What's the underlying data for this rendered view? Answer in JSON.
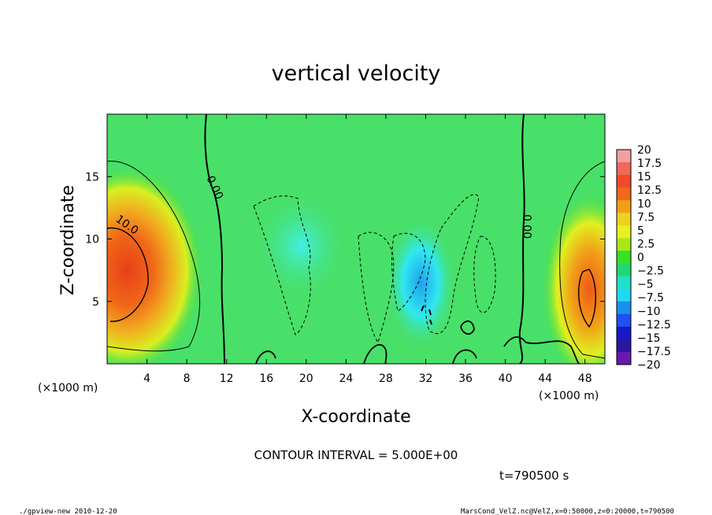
{
  "chart_data": {
    "type": "heatmap",
    "title": "vertical velocity",
    "xlabel": "X-coordinate",
    "ylabel": "Z-coordinate",
    "x_unit": "(×1000 m)",
    "xlim": [
      0,
      50
    ],
    "ylim": [
      0,
      20
    ],
    "x_ticks": [
      4,
      8,
      12,
      16,
      20,
      24,
      28,
      32,
      36,
      40,
      44,
      48
    ],
    "y_ticks": [
      5,
      10,
      15
    ],
    "colorbar": {
      "range": [
        -20,
        20
      ],
      "labels": [
        "20",
        "17.5",
        "15",
        "12.5",
        "10",
        "7.5",
        "5",
        "2.5",
        "0",
        "−2.5",
        "−5",
        "−7.5",
        "−10",
        "−12.5",
        "−15",
        "−17.5",
        "−20"
      ],
      "colors": [
        "#f0a0a0",
        "#f06a5a",
        "#f04a28",
        "#f06818",
        "#f0a018",
        "#f0d020",
        "#e8f020",
        "#a8e818",
        "#38e028",
        "#20d870",
        "#20e0c8",
        "#20d8f0",
        "#1890f0",
        "#2050f0",
        "#1818c8",
        "#2818a0",
        "#6818b0"
      ]
    },
    "contour_labels": [
      {
        "text": "10.0",
        "x": 1.8,
        "z": 10.9
      },
      {
        "text": "0.00",
        "x": 10.5,
        "z": 14.0
      },
      {
        "text": "0.00",
        "x": 41.8,
        "z": 11.0
      }
    ],
    "updrafts": [
      {
        "x": 2.0,
        "z": 7.5,
        "peak": 15
      },
      {
        "x": 48.5,
        "z": 6.0,
        "peak": 12.5
      }
    ],
    "downdrafts": [
      {
        "x": 31.5,
        "z": 6.5,
        "peak": -10
      },
      {
        "x": 19.5,
        "z": 9.5,
        "peak": -5
      }
    ],
    "annotations": {
      "contour_interval": "CONTOUR INTERVAL = 5.000E+00",
      "time": "t=790500 s"
    }
  },
  "footer": {
    "left": "./gpview-new  2010-12-20",
    "right": "MarsCond_VelZ.nc@VelZ,x=0:50000,z=0:20000,t=790500"
  }
}
